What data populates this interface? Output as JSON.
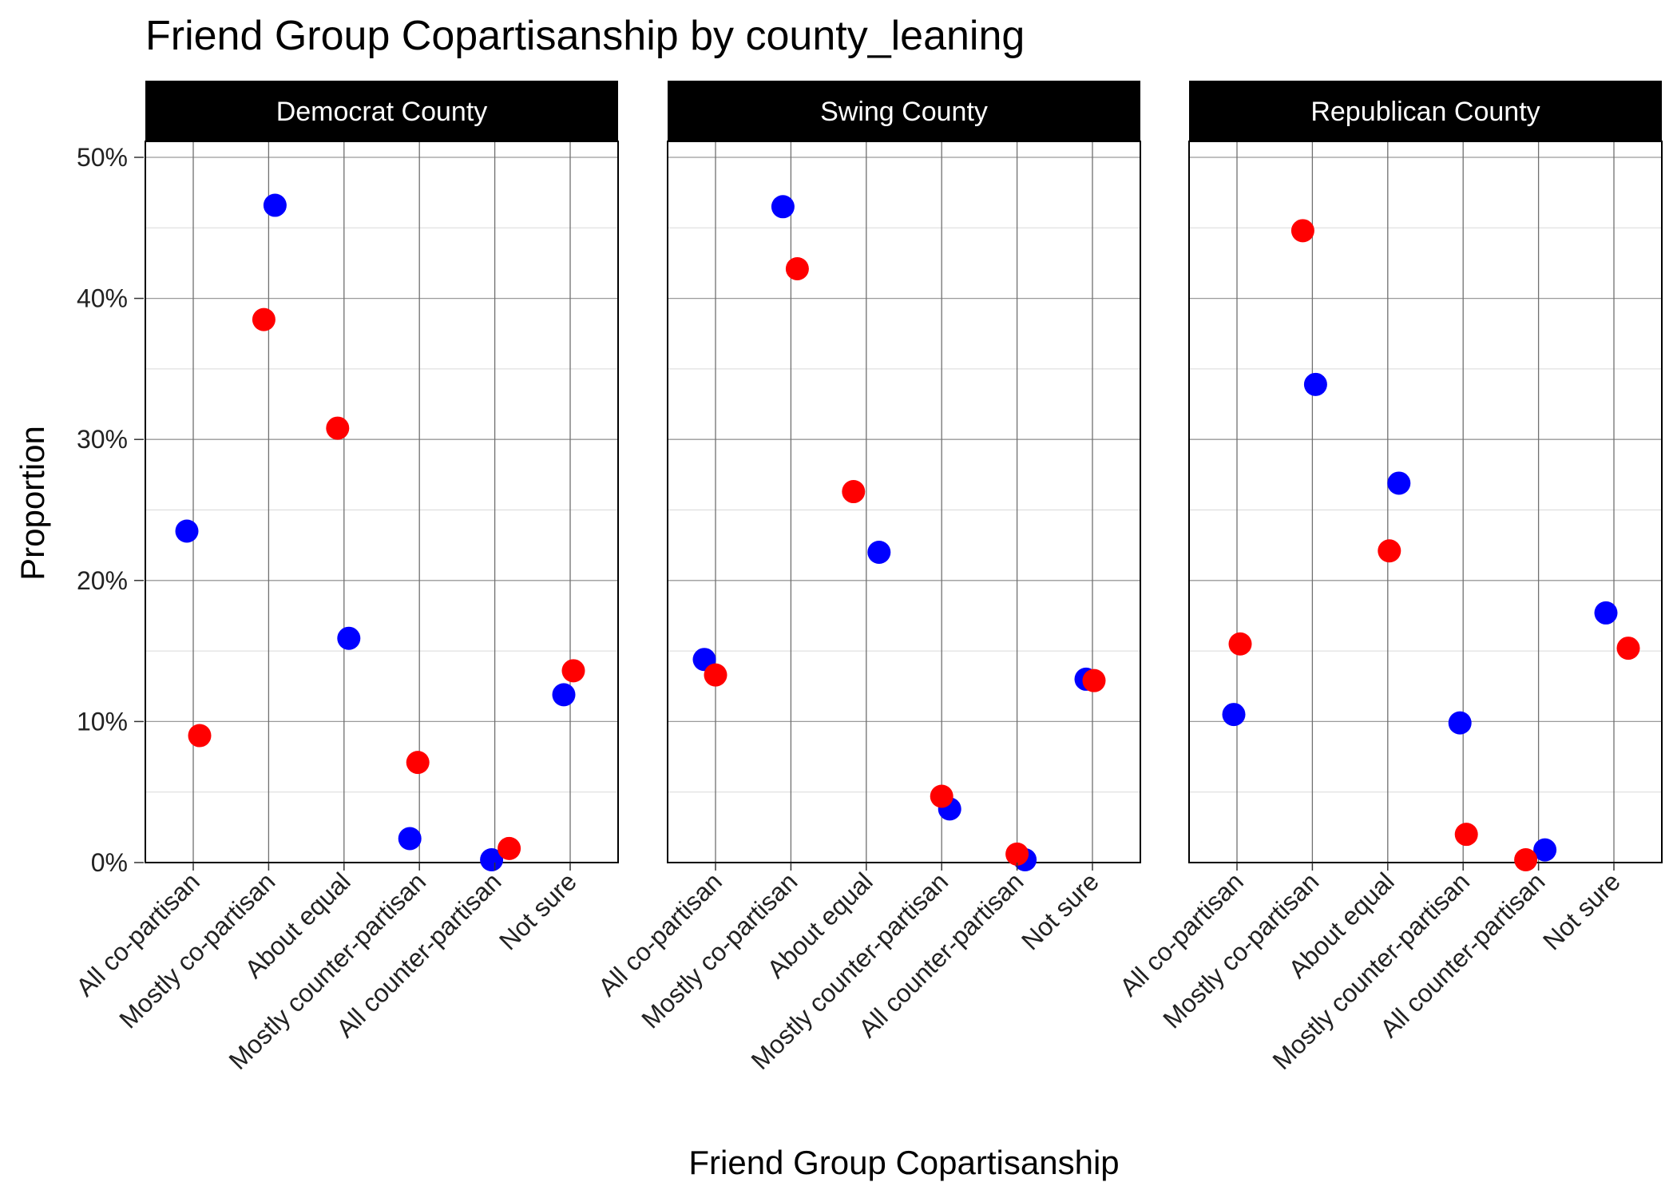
{
  "chart_data": {
    "type": "scatter",
    "title": "Friend Group Copartisanship by county_leaning",
    "xlabel": "Friend Group Copartisanship",
    "ylabel": "Proportion",
    "ylim": [
      0,
      0.5
    ],
    "y_ticks": [
      "0%",
      "10%",
      "20%",
      "30%",
      "40%",
      "50%"
    ],
    "categories": [
      "All co-partisan",
      "Mostly co-partisan",
      "About equal",
      "Mostly counter-partisan",
      "All counter-partisan",
      "Not sure"
    ],
    "grid": true,
    "legend": "none",
    "series_colors": {
      "blue": "#0000ff",
      "red": "#ff0000"
    },
    "panels": [
      {
        "label": "Democrat County",
        "series": [
          {
            "color": "blue",
            "values": [
              0.235,
              0.466,
              0.159,
              0.017,
              0.002,
              0.119
            ]
          },
          {
            "color": "red",
            "values": [
              0.09,
              0.385,
              0.308,
              0.071,
              0.01,
              0.136
            ]
          }
        ]
      },
      {
        "label": "Swing County",
        "series": [
          {
            "color": "blue",
            "values": [
              0.144,
              0.465,
              0.22,
              0.038,
              0.002,
              0.13
            ]
          },
          {
            "color": "red",
            "values": [
              0.133,
              0.421,
              0.263,
              0.047,
              0.006,
              0.129
            ]
          }
        ]
      },
      {
        "label": "Republican County",
        "series": [
          {
            "color": "blue",
            "values": [
              0.105,
              0.339,
              0.269,
              0.099,
              0.009,
              0.177
            ]
          },
          {
            "color": "red",
            "values": [
              0.155,
              0.448,
              0.221,
              0.02,
              0.002,
              0.152
            ]
          }
        ]
      }
    ]
  }
}
